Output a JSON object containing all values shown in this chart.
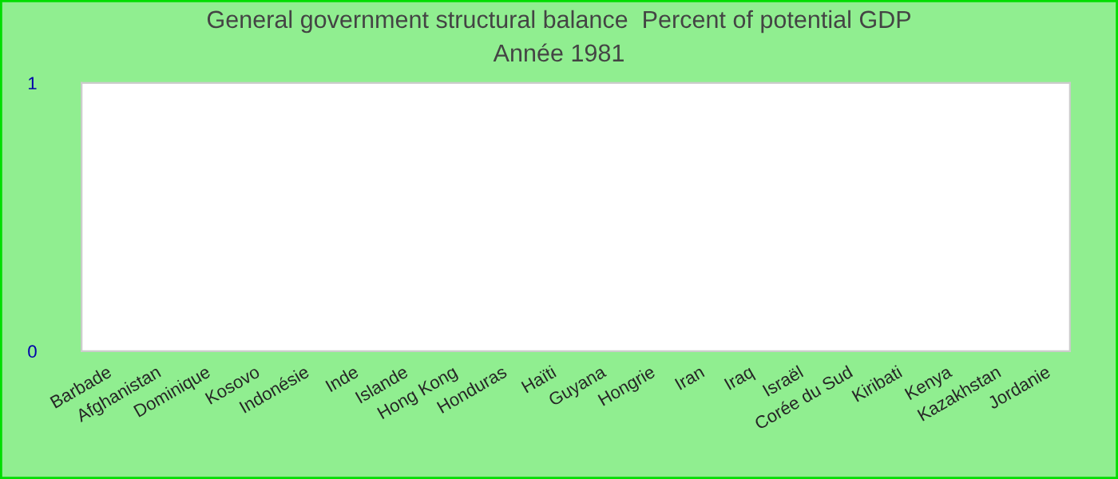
{
  "chart_data": {
    "type": "bar",
    "title": "General government structural balance  Percent of potential GDP",
    "subtitle": "Année 1981",
    "categories": [
      "Barbade",
      "Afghanistan",
      "Dominique",
      "Kosovo",
      "Indonésie",
      "Inde",
      "Islande",
      "Hong Kong",
      "Honduras",
      "Haïti",
      "Guyana",
      "Hongrie",
      "Iran",
      "Iraq",
      "Israël",
      "Corée du Sud",
      "Kiribati",
      "Kenya",
      "Kazakhstan",
      "Jordanie"
    ],
    "values": [
      0,
      0,
      0,
      0,
      0,
      0,
      0,
      0,
      0,
      0,
      0,
      0,
      0,
      0,
      0,
      0,
      0,
      0,
      0,
      0
    ],
    "ylim": [
      0,
      1
    ],
    "yticks": [
      0,
      1
    ],
    "grid": false
  }
}
